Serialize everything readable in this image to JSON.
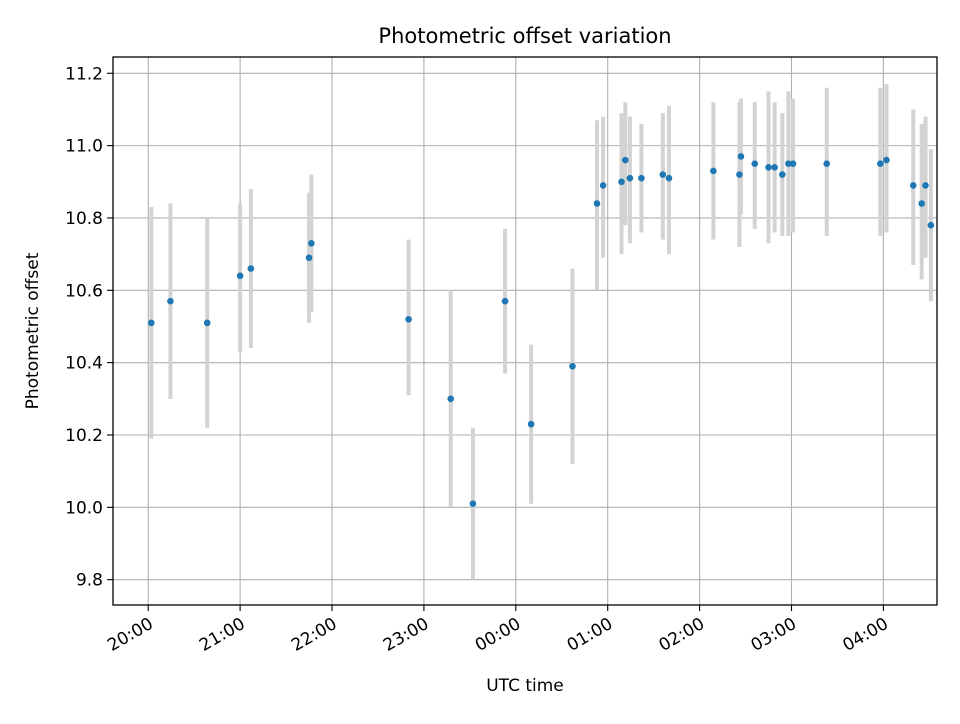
{
  "chart_data": {
    "type": "scatter",
    "title": "Photometric offset variation",
    "xlabel": "UTC time",
    "ylabel": "Photometric offset",
    "x_unit": "minutes relative to 20:00 UTC",
    "xlim": [
      -23,
      515
    ],
    "ylim": [
      9.73,
      11.245
    ],
    "grid": true,
    "x_ticks": [
      {
        "label": "20:00",
        "value": 0
      },
      {
        "label": "21:00",
        "value": 60
      },
      {
        "label": "22:00",
        "value": 120
      },
      {
        "label": "23:00",
        "value": 180
      },
      {
        "label": "00:00",
        "value": 240
      },
      {
        "label": "01:00",
        "value": 300
      },
      {
        "label": "02:00",
        "value": 360
      },
      {
        "label": "03:00",
        "value": 420
      },
      {
        "label": "04:00",
        "value": 480
      }
    ],
    "y_ticks": [
      {
        "label": "9.8",
        "value": 9.8
      },
      {
        "label": "10.0",
        "value": 10.0
      },
      {
        "label": "10.2",
        "value": 10.2
      },
      {
        "label": "10.4",
        "value": 10.4
      },
      {
        "label": "10.6",
        "value": 10.6
      },
      {
        "label": "10.8",
        "value": 10.8
      },
      {
        "label": "11.0",
        "value": 11.0
      },
      {
        "label": "11.2",
        "value": 11.2
      }
    ],
    "colors": {
      "point": "#1f77b4",
      "errorbar": "#d3d3d3",
      "grid": "#b0b0b0"
    },
    "points": [
      {
        "x": 2,
        "y": 10.51,
        "lo": 10.19,
        "hi": 10.83
      },
      {
        "x": 14.5,
        "y": 10.57,
        "lo": 10.3,
        "hi": 10.84
      },
      {
        "x": 38.5,
        "y": 10.51,
        "lo": 10.22,
        "hi": 10.8
      },
      {
        "x": 60,
        "y": 10.64,
        "lo": 10.43,
        "hi": 10.84
      },
      {
        "x": 67,
        "y": 10.66,
        "lo": 10.44,
        "hi": 10.88
      },
      {
        "x": 105,
        "y": 10.69,
        "lo": 10.51,
        "hi": 10.87
      },
      {
        "x": 106.5,
        "y": 10.73,
        "lo": 10.54,
        "hi": 10.92
      },
      {
        "x": 170,
        "y": 10.52,
        "lo": 10.31,
        "hi": 10.74
      },
      {
        "x": 197.5,
        "y": 10.3,
        "lo": 10.0,
        "hi": 10.6
      },
      {
        "x": 212,
        "y": 10.01,
        "lo": 9.8,
        "hi": 10.22
      },
      {
        "x": 233,
        "y": 10.57,
        "lo": 10.37,
        "hi": 10.77
      },
      {
        "x": 250,
        "y": 10.23,
        "lo": 10.01,
        "hi": 10.45
      },
      {
        "x": 277,
        "y": 10.39,
        "lo": 10.12,
        "hi": 10.66
      },
      {
        "x": 293,
        "y": 10.84,
        "lo": 10.6,
        "hi": 11.07
      },
      {
        "x": 297,
        "y": 10.89,
        "lo": 10.69,
        "hi": 11.08
      },
      {
        "x": 309,
        "y": 10.9,
        "lo": 10.7,
        "hi": 11.09
      },
      {
        "x": 311.5,
        "y": 10.96,
        "lo": 10.78,
        "hi": 11.12
      },
      {
        "x": 314.5,
        "y": 10.91,
        "lo": 10.73,
        "hi": 11.08
      },
      {
        "x": 322,
        "y": 10.91,
        "lo": 10.76,
        "hi": 11.06
      },
      {
        "x": 336,
        "y": 10.92,
        "lo": 10.74,
        "hi": 11.09
      },
      {
        "x": 340,
        "y": 10.91,
        "lo": 10.7,
        "hi": 11.11
      },
      {
        "x": 369,
        "y": 10.93,
        "lo": 10.74,
        "hi": 11.12
      },
      {
        "x": 386,
        "y": 10.92,
        "lo": 10.72,
        "hi": 11.12
      },
      {
        "x": 387,
        "y": 10.97,
        "lo": 10.81,
        "hi": 11.13
      },
      {
        "x": 396,
        "y": 10.95,
        "lo": 10.77,
        "hi": 11.12
      },
      {
        "x": 405,
        "y": 10.94,
        "lo": 10.73,
        "hi": 11.15
      },
      {
        "x": 409,
        "y": 10.94,
        "lo": 10.76,
        "hi": 11.12
      },
      {
        "x": 414,
        "y": 10.92,
        "lo": 10.75,
        "hi": 11.09
      },
      {
        "x": 418,
        "y": 10.95,
        "lo": 10.75,
        "hi": 11.15
      },
      {
        "x": 421,
        "y": 10.95,
        "lo": 10.76,
        "hi": 11.13
      },
      {
        "x": 443,
        "y": 10.95,
        "lo": 10.75,
        "hi": 11.16
      },
      {
        "x": 478,
        "y": 10.95,
        "lo": 10.75,
        "hi": 11.16
      },
      {
        "x": 482,
        "y": 10.96,
        "lo": 10.76,
        "hi": 11.17
      },
      {
        "x": 499.5,
        "y": 10.89,
        "lo": 10.67,
        "hi": 11.1
      },
      {
        "x": 505,
        "y": 10.84,
        "lo": 10.63,
        "hi": 11.06
      },
      {
        "x": 507.5,
        "y": 10.89,
        "lo": 10.69,
        "hi": 11.08
      },
      {
        "x": 511,
        "y": 10.78,
        "lo": 10.57,
        "hi": 10.99
      }
    ]
  }
}
